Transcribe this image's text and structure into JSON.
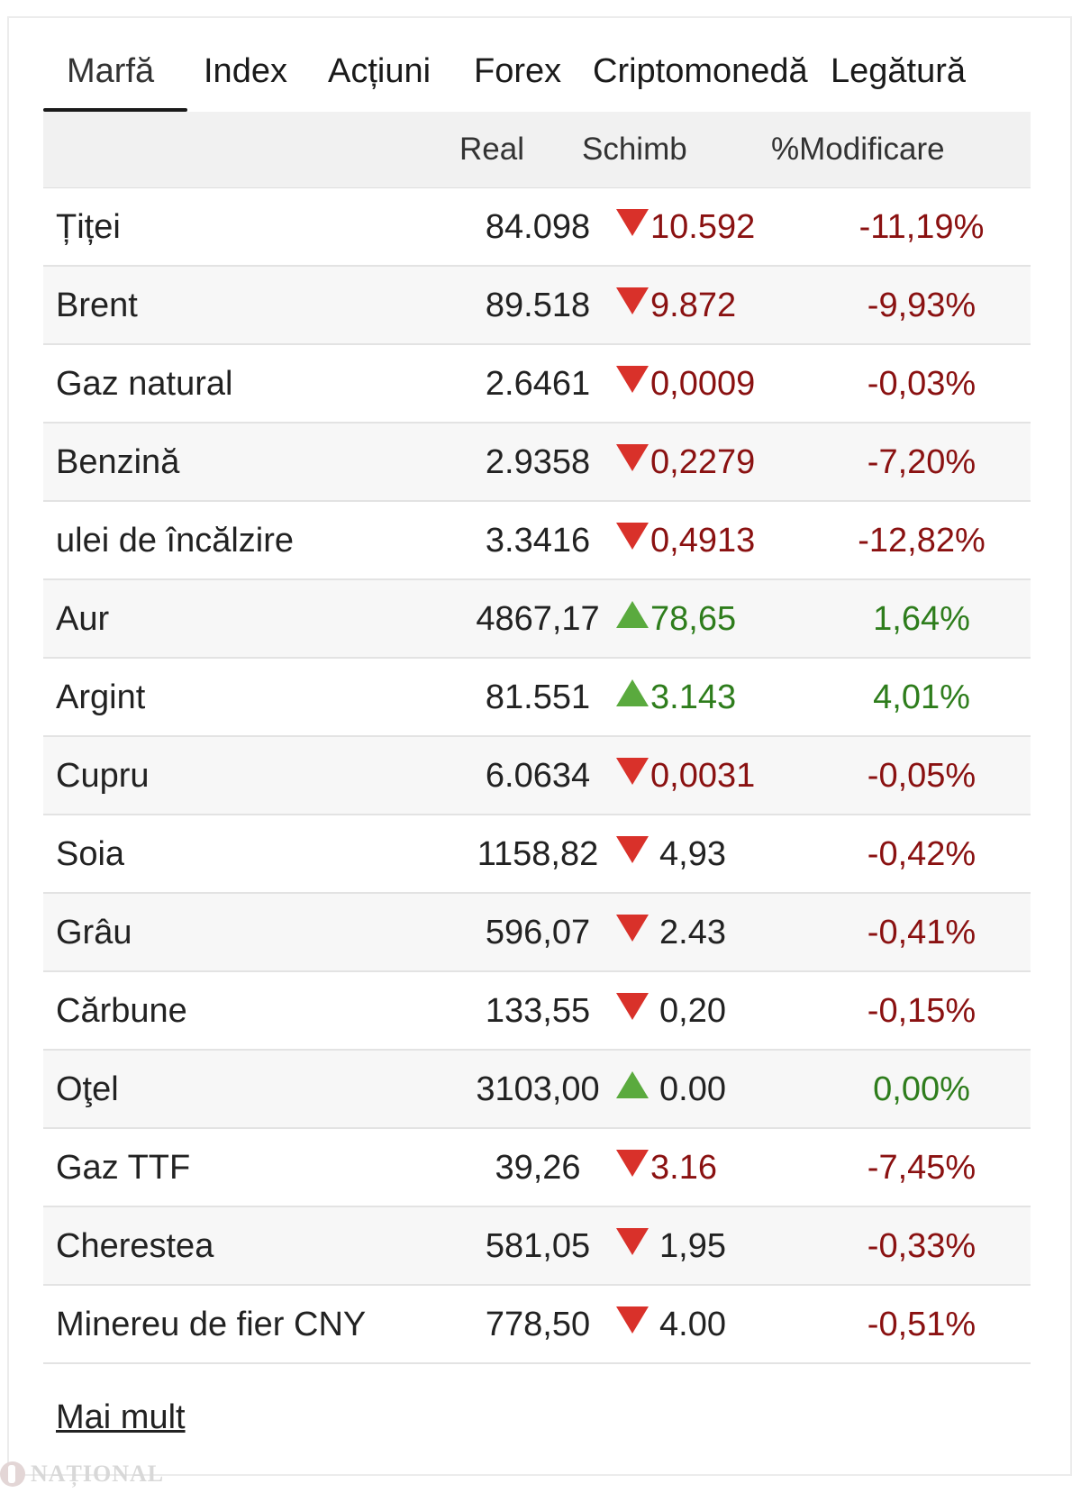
{
  "tabs": [
    {
      "label": "Marfă",
      "active": true
    },
    {
      "label": "Index",
      "active": false
    },
    {
      "label": "Acțiuni",
      "active": false
    },
    {
      "label": "Forex",
      "active": false
    },
    {
      "label": "Criptomonedă",
      "active": false
    },
    {
      "label": "Legătură",
      "active": false
    }
  ],
  "table": {
    "headers": {
      "name": "",
      "real": "Real",
      "change": "Schimb",
      "pct": "%Modificare"
    },
    "rows": [
      {
        "name": "Țiței",
        "real": "84.098",
        "direction": "down",
        "change": "10.592",
        "pct": "-11,19%"
      },
      {
        "name": "Brent",
        "real": "89.518",
        "direction": "down",
        "change": "9.872",
        "pct": "-9,93%"
      },
      {
        "name": "Gaz natural",
        "real": "2.6461",
        "direction": "down",
        "change": "0,0009",
        "pct": "-0,03%"
      },
      {
        "name": "Benzină",
        "real": "2.9358",
        "direction": "down",
        "change": "0,2279",
        "pct": "-7,20%"
      },
      {
        "name": "ulei de încălzire",
        "real": "3.3416",
        "direction": "down",
        "change": "0,4913",
        "pct": "-12,82%"
      },
      {
        "name": "Aur",
        "real": "4867,17",
        "direction": "up",
        "change": "78,65",
        "pct": "1,64%"
      },
      {
        "name": "Argint",
        "real": "81.551",
        "direction": "up",
        "change": "3.143",
        "pct": "4,01%"
      },
      {
        "name": "Cupru",
        "real": "6.0634",
        "direction": "down",
        "change": "0,0031",
        "pct": "-0,05%"
      },
      {
        "name": "Soia",
        "real": "1158,82",
        "direction": "down",
        "change": "4,93",
        "pct": "-0,42%",
        "plain_change": true
      },
      {
        "name": "Grâu",
        "real": "596,07",
        "direction": "down",
        "change": "2.43",
        "pct": "-0,41%",
        "plain_change": true
      },
      {
        "name": "Cărbune",
        "real": "133,55",
        "direction": "down",
        "change": "0,20",
        "pct": "-0,15%",
        "plain_change": true
      },
      {
        "name": "Oţel",
        "real": "3103,00",
        "direction": "up",
        "change": "0.00",
        "pct": "0,00%",
        "plain_change": true
      },
      {
        "name": "Gaz TTF",
        "real": "39,26",
        "direction": "down",
        "change": "3.16",
        "pct": "-7,45%"
      },
      {
        "name": "Cherestea",
        "real": "581,05",
        "direction": "down",
        "change": "1,95",
        "pct": "-0,33%",
        "plain_change": true
      },
      {
        "name": "Minereu de fier CNY",
        "real": "778,50",
        "direction": "down",
        "change": "4.00",
        "pct": "-0,51%",
        "plain_change": true
      }
    ]
  },
  "more_link": "Mai mult",
  "watermark": "NAȚIONAL",
  "colors": {
    "negative": "#8a1111",
    "positive": "#2e7d1c",
    "arrow_down": "#d9312a",
    "arrow_up": "#5aaa3e"
  }
}
